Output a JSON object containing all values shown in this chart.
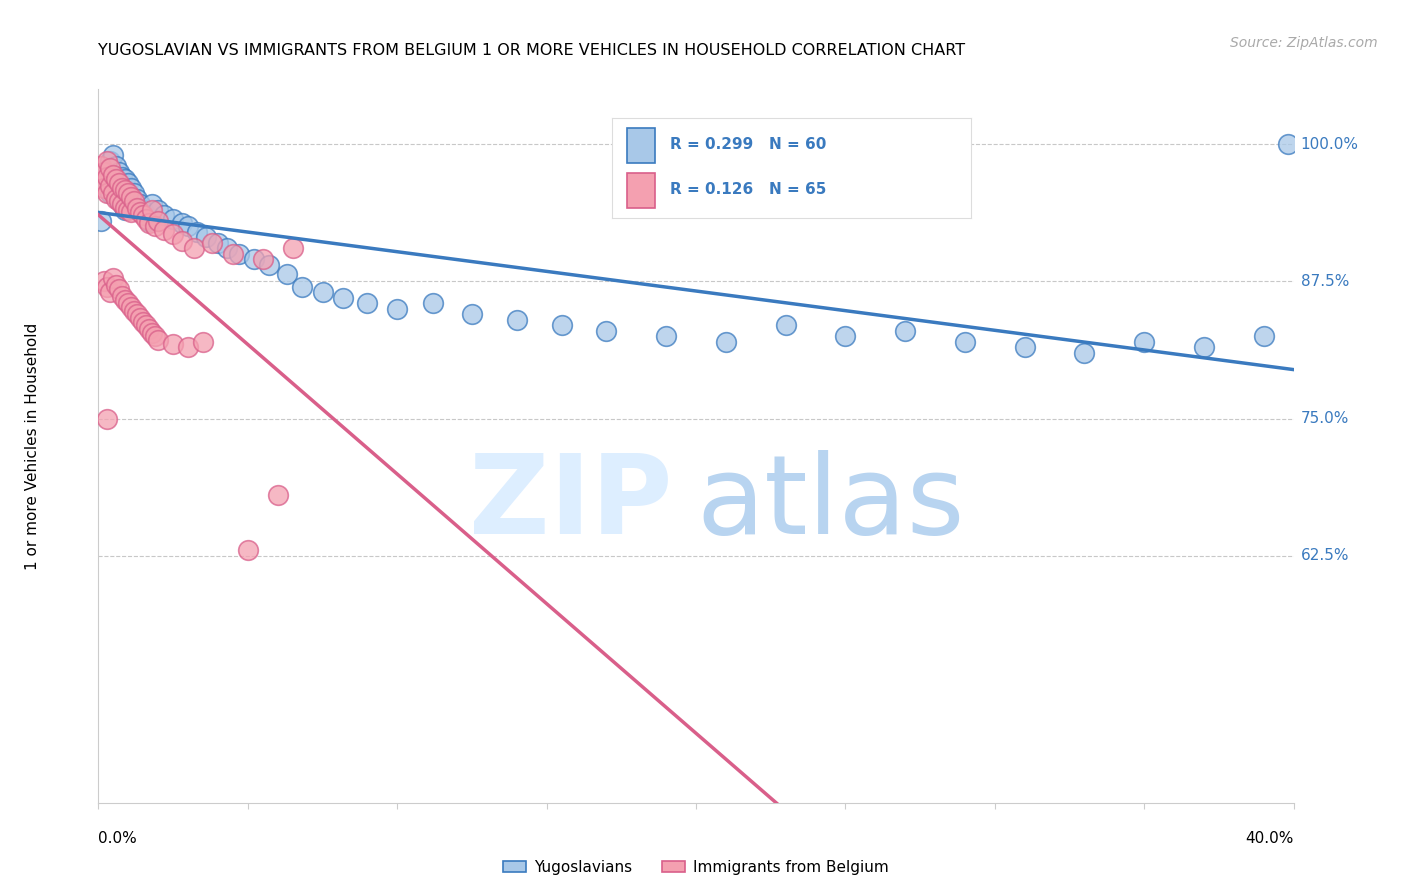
{
  "title": "YUGOSLAVIAN VS IMMIGRANTS FROM BELGIUM 1 OR MORE VEHICLES IN HOUSEHOLD CORRELATION CHART",
  "source": "Source: ZipAtlas.com",
  "ylabel": "1 or more Vehicles in Household",
  "legend_entries": [
    "Yugoslavians",
    "Immigrants from Belgium"
  ],
  "R_blue": 0.299,
  "N_blue": 60,
  "R_pink": 0.126,
  "N_pink": 65,
  "blue_color": "#a8c8e8",
  "pink_color": "#f4a0b0",
  "trend_blue": "#3a7abf",
  "trend_pink": "#d95f8a",
  "ytick_vals": [
    0.625,
    0.75,
    0.875,
    1.0
  ],
  "ytick_labels": [
    "62.5%",
    "75.0%",
    "87.5%",
    "100.0%"
  ],
  "xlim": [
    0.0,
    0.4
  ],
  "ylim": [
    0.4,
    1.05
  ],
  "blue_scatter_x": [
    0.001,
    0.002,
    0.003,
    0.004,
    0.004,
    0.005,
    0.005,
    0.006,
    0.006,
    0.007,
    0.007,
    0.008,
    0.008,
    0.009,
    0.009,
    0.01,
    0.01,
    0.011,
    0.012,
    0.013,
    0.014,
    0.015,
    0.016,
    0.017,
    0.018,
    0.02,
    0.022,
    0.025,
    0.028,
    0.03,
    0.033,
    0.036,
    0.04,
    0.043,
    0.047,
    0.052,
    0.057,
    0.063,
    0.068,
    0.075,
    0.082,
    0.09,
    0.1,
    0.112,
    0.125,
    0.14,
    0.155,
    0.17,
    0.19,
    0.21,
    0.23,
    0.25,
    0.27,
    0.29,
    0.31,
    0.33,
    0.35,
    0.37,
    0.39,
    0.398
  ],
  "blue_scatter_y": [
    0.93,
    0.97,
    0.96,
    0.985,
    0.955,
    0.99,
    0.96,
    0.98,
    0.955,
    0.975,
    0.95,
    0.97,
    0.945,
    0.968,
    0.94,
    0.965,
    0.945,
    0.96,
    0.955,
    0.95,
    0.945,
    0.94,
    0.935,
    0.93,
    0.945,
    0.94,
    0.935,
    0.932,
    0.928,
    0.925,
    0.92,
    0.915,
    0.91,
    0.905,
    0.9,
    0.895,
    0.89,
    0.882,
    0.87,
    0.865,
    0.86,
    0.855,
    0.85,
    0.855,
    0.845,
    0.84,
    0.835,
    0.83,
    0.825,
    0.82,
    0.835,
    0.825,
    0.83,
    0.82,
    0.815,
    0.81,
    0.82,
    0.815,
    0.825,
    1.0
  ],
  "pink_scatter_x": [
    0.001,
    0.001,
    0.002,
    0.002,
    0.003,
    0.003,
    0.003,
    0.004,
    0.004,
    0.005,
    0.005,
    0.006,
    0.006,
    0.007,
    0.007,
    0.008,
    0.008,
    0.009,
    0.009,
    0.01,
    0.01,
    0.011,
    0.011,
    0.012,
    0.013,
    0.014,
    0.015,
    0.016,
    0.017,
    0.018,
    0.019,
    0.02,
    0.022,
    0.025,
    0.028,
    0.032,
    0.038,
    0.045,
    0.055,
    0.065,
    0.002,
    0.003,
    0.004,
    0.005,
    0.006,
    0.007,
    0.008,
    0.009,
    0.01,
    0.011,
    0.012,
    0.013,
    0.014,
    0.015,
    0.016,
    0.017,
    0.018,
    0.019,
    0.02,
    0.025,
    0.03,
    0.035,
    0.003,
    0.05,
    0.06
  ],
  "pink_scatter_y": [
    0.98,
    0.965,
    0.975,
    0.96,
    0.985,
    0.97,
    0.955,
    0.978,
    0.962,
    0.972,
    0.955,
    0.968,
    0.95,
    0.965,
    0.948,
    0.96,
    0.945,
    0.958,
    0.942,
    0.955,
    0.94,
    0.952,
    0.938,
    0.948,
    0.942,
    0.938,
    0.935,
    0.932,
    0.928,
    0.94,
    0.925,
    0.93,
    0.922,
    0.918,
    0.912,
    0.905,
    0.91,
    0.9,
    0.895,
    0.905,
    0.875,
    0.87,
    0.865,
    0.878,
    0.872,
    0.868,
    0.862,
    0.858,
    0.855,
    0.852,
    0.848,
    0.845,
    0.842,
    0.838,
    0.835,
    0.832,
    0.828,
    0.825,
    0.822,
    0.818,
    0.815,
    0.82,
    0.75,
    0.63,
    0.68
  ]
}
